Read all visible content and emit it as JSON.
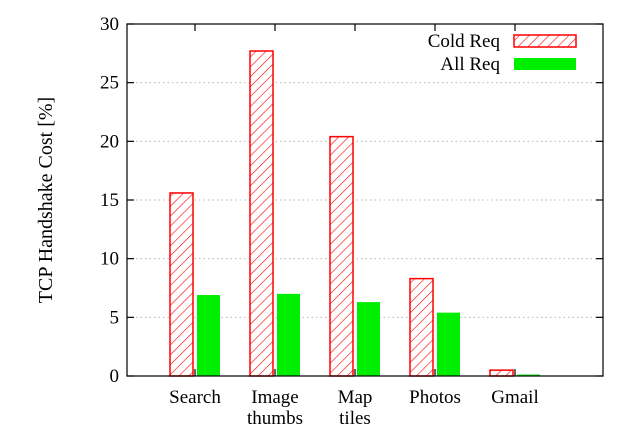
{
  "chart_data": {
    "type": "bar",
    "title": "",
    "xlabel": "",
    "ylabel": "TCP Handshake Cost [%]",
    "ylim": [
      0,
      30
    ],
    "yticks": [
      0,
      5,
      10,
      15,
      20,
      25,
      30
    ],
    "grid": true,
    "legend_position": "top-right",
    "categories": [
      [
        "Search"
      ],
      [
        "Image",
        "thumbs"
      ],
      [
        "Map",
        "tiles"
      ],
      [
        "Photos"
      ],
      [
        "Gmail"
      ]
    ],
    "series": [
      {
        "name": "Cold Req",
        "color": "#ff0000",
        "style": "hatched",
        "values": [
          15.6,
          27.7,
          20.4,
          8.3,
          0.5
        ]
      },
      {
        "name": "All Req",
        "color": "#00ee00",
        "style": "solid",
        "values": [
          6.9,
          7.0,
          6.3,
          5.4,
          0.1
        ]
      }
    ]
  }
}
